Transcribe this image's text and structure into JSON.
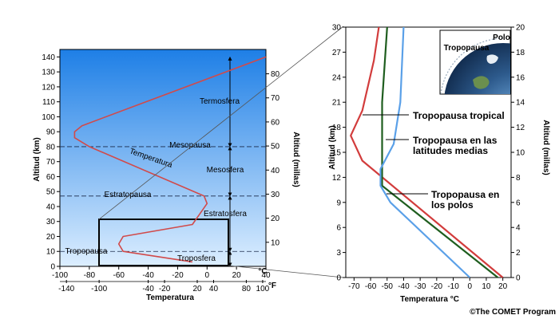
{
  "colors": {
    "sky_top": "#1e7fe6",
    "sky_bottom": "#dceeff",
    "tropical": "#d23c3c",
    "midlat": "#1f5e1f",
    "polar": "#5aa0e8",
    "profile": "#d14a4a"
  },
  "left_chart": {
    "y_label_km": "Altitud (km)",
    "y_label_mi": "Altitud (millas)",
    "x_label": "Temperatura",
    "unit_c": "°C",
    "unit_f": "°F",
    "km_ticks": [
      "140",
      "130",
      "120",
      "110",
      "100",
      "90",
      "80",
      "70",
      "60",
      "50",
      "40",
      "30",
      "20",
      "10",
      "0"
    ],
    "mi_ticks": [
      "80",
      "70",
      "60",
      "50",
      "40",
      "30",
      "20",
      "10"
    ],
    "c_ticks": [
      "-100",
      "-80",
      "-60",
      "-40",
      "-20",
      "0",
      "20",
      "40"
    ],
    "f_ticks": [
      "-140",
      "-100",
      "-40",
      "-20",
      "20",
      "40",
      "80",
      "100"
    ],
    "layers": {
      "termosfera": "Termosfera",
      "mesopausa": "Mesopausa",
      "mesosfera": "Mesosfera",
      "estratopausa": "Estratopausa",
      "estratosfera": "Estratosfera",
      "tropopausa": "Tropopausa",
      "troposfera": "Troposfera",
      "temperatura": "Temperatura"
    }
  },
  "chart_data": [
    {
      "type": "line",
      "x_unit": "°C",
      "y_unit": "km",
      "xlim": [
        -100,
        40
      ],
      "ylim": [
        0,
        145
      ],
      "series": [
        {
          "x": [
            -10,
            -57,
            -60,
            -57,
            -10,
            0,
            -2,
            -80,
            -90,
            -90,
            -85,
            40
          ],
          "y": [
            3,
            10,
            15,
            20,
            28,
            42,
            47,
            80,
            86,
            90,
            94,
            140
          ]
        }
      ],
      "boundaries_km": [
        10,
        47,
        80
      ]
    },
    {
      "type": "line",
      "xlabel": "Temperatura °C",
      "ylabel": "Altitud (km)",
      "ylabel2": "Altitud (millas)",
      "xlim": [
        -75,
        25
      ],
      "ylim": [
        0,
        30
      ],
      "y2lim": [
        0,
        20
      ],
      "series": [
        {
          "x": [
            20,
            -65,
            -72,
            -65,
            -58,
            -55
          ],
          "y": [
            0,
            14,
            17,
            20,
            26,
            30
          ]
        },
        {
          "x": [
            17,
            -53,
            -53,
            -53,
            -53,
            -50
          ],
          "y": [
            0,
            11,
            13,
            16,
            21,
            30
          ]
        },
        {
          "x": [
            0,
            -48,
            -54,
            -54,
            -46,
            -42,
            -40
          ],
          "y": [
            0,
            9,
            11,
            13,
            16,
            21,
            30
          ]
        }
      ]
    }
  ],
  "right_chart": {
    "y_ticks": [
      "0",
      "3",
      "6",
      "9",
      "12",
      "15",
      "18",
      "21",
      "24",
      "27",
      "30"
    ],
    "y2_ticks": [
      "0",
      "2",
      "4",
      "6",
      "8",
      "10",
      "12",
      "14",
      "16",
      "18",
      "20"
    ],
    "x_ticks": [
      "-70",
      "-60",
      "-50",
      "-40",
      "-30",
      "-20",
      "-10",
      "0",
      "10",
      "20"
    ],
    "callouts": {
      "tropical": "Tropopausa tropical",
      "midlat_1": "Tropopausa en las",
      "midlat_2": "latitudes medias",
      "polar_1": "Tropopausa en",
      "polar_2": "los polos"
    },
    "inset": {
      "polo": "Polo",
      "tropopausa": "Tropopausa"
    }
  },
  "credit": "©The COMET Program"
}
